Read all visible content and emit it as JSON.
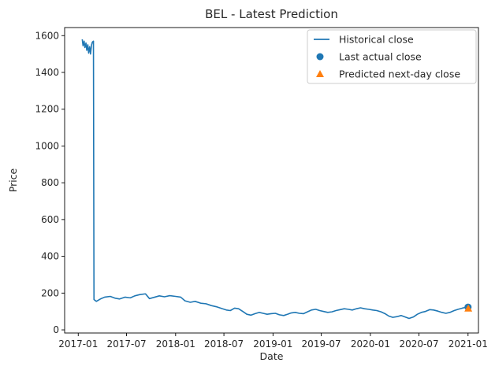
{
  "chart_data": {
    "type": "line",
    "title": "BEL - Latest Prediction",
    "xlabel": "Date",
    "ylabel": "Price",
    "xlim": [
      "2016-11-11",
      "2021-02-09"
    ],
    "ylim": [
      -17,
      1644
    ],
    "x_ticks": [
      "2017-01",
      "2017-07",
      "2018-01",
      "2018-07",
      "2019-01",
      "2019-07",
      "2020-01",
      "2020-07",
      "2021-01"
    ],
    "y_ticks": [
      0,
      200,
      400,
      600,
      800,
      1000,
      1200,
      1400,
      1600
    ],
    "grid": false,
    "legend_position": "top-right",
    "series": [
      {
        "name": "Historical close",
        "kind": "line",
        "color": "#1f77b4",
        "points": [
          [
            "2017-01-16",
            1580
          ],
          [
            "2017-01-19",
            1545
          ],
          [
            "2017-01-23",
            1570
          ],
          [
            "2017-01-26",
            1535
          ],
          [
            "2017-01-30",
            1560
          ],
          [
            "2017-02-02",
            1520
          ],
          [
            "2017-02-06",
            1550
          ],
          [
            "2017-02-09",
            1505
          ],
          [
            "2017-02-13",
            1540
          ],
          [
            "2017-02-16",
            1500
          ],
          [
            "2017-02-20",
            1550
          ],
          [
            "2017-02-23",
            1565
          ],
          [
            "2017-02-27",
            1570
          ],
          [
            "2017-03-01",
            165
          ],
          [
            "2017-03-10",
            155
          ],
          [
            "2017-03-25",
            168
          ],
          [
            "2017-04-10",
            178
          ],
          [
            "2017-05-01",
            182
          ],
          [
            "2017-05-20",
            172
          ],
          [
            "2017-06-05",
            168
          ],
          [
            "2017-06-25",
            178
          ],
          [
            "2017-07-15",
            174
          ],
          [
            "2017-08-01",
            185
          ],
          [
            "2017-08-20",
            192
          ],
          [
            "2017-09-10",
            196
          ],
          [
            "2017-09-25",
            170
          ],
          [
            "2017-10-15",
            178
          ],
          [
            "2017-11-01",
            185
          ],
          [
            "2017-11-20",
            180
          ],
          [
            "2017-12-10",
            186
          ],
          [
            "2018-01-01",
            182
          ],
          [
            "2018-01-20",
            178
          ],
          [
            "2018-02-05",
            158
          ],
          [
            "2018-02-25",
            150
          ],
          [
            "2018-03-15",
            155
          ],
          [
            "2018-04-05",
            145
          ],
          [
            "2018-04-25",
            142
          ],
          [
            "2018-05-15",
            132
          ],
          [
            "2018-06-05",
            125
          ],
          [
            "2018-06-25",
            115
          ],
          [
            "2018-07-10",
            108
          ],
          [
            "2018-07-25",
            105
          ],
          [
            "2018-08-10",
            118
          ],
          [
            "2018-08-25",
            115
          ],
          [
            "2018-09-10",
            100
          ],
          [
            "2018-09-25",
            85
          ],
          [
            "2018-10-10",
            80
          ],
          [
            "2018-10-25",
            88
          ],
          [
            "2018-11-10",
            95
          ],
          [
            "2018-11-25",
            90
          ],
          [
            "2018-12-10",
            85
          ],
          [
            "2018-12-25",
            88
          ],
          [
            "2019-01-10",
            90
          ],
          [
            "2019-01-25",
            82
          ],
          [
            "2019-02-10",
            78
          ],
          [
            "2019-02-25",
            85
          ],
          [
            "2019-03-10",
            92
          ],
          [
            "2019-03-25",
            95
          ],
          [
            "2019-04-10",
            90
          ],
          [
            "2019-04-25",
            88
          ],
          [
            "2019-05-10",
            98
          ],
          [
            "2019-05-25",
            108
          ],
          [
            "2019-06-10",
            112
          ],
          [
            "2019-06-25",
            105
          ],
          [
            "2019-07-10",
            100
          ],
          [
            "2019-07-25",
            95
          ],
          [
            "2019-08-10",
            98
          ],
          [
            "2019-08-25",
            105
          ],
          [
            "2019-09-10",
            110
          ],
          [
            "2019-09-25",
            115
          ],
          [
            "2019-10-10",
            112
          ],
          [
            "2019-10-25",
            108
          ],
          [
            "2019-11-10",
            115
          ],
          [
            "2019-11-25",
            120
          ],
          [
            "2019-12-10",
            115
          ],
          [
            "2019-12-25",
            112
          ],
          [
            "2020-01-10",
            108
          ],
          [
            "2020-01-25",
            105
          ],
          [
            "2020-02-10",
            98
          ],
          [
            "2020-02-25",
            88
          ],
          [
            "2020-03-10",
            75
          ],
          [
            "2020-03-25",
            68
          ],
          [
            "2020-04-10",
            72
          ],
          [
            "2020-04-25",
            78
          ],
          [
            "2020-05-10",
            70
          ],
          [
            "2020-05-25",
            62
          ],
          [
            "2020-06-10",
            70
          ],
          [
            "2020-06-25",
            85
          ],
          [
            "2020-07-10",
            95
          ],
          [
            "2020-07-25",
            100
          ],
          [
            "2020-08-10",
            110
          ],
          [
            "2020-08-25",
            108
          ],
          [
            "2020-09-10",
            102
          ],
          [
            "2020-09-25",
            95
          ],
          [
            "2020-10-10",
            90
          ],
          [
            "2020-10-25",
            95
          ],
          [
            "2020-11-10",
            105
          ],
          [
            "2020-11-25",
            112
          ],
          [
            "2020-12-10",
            118
          ],
          [
            "2020-12-22",
            122
          ],
          [
            "2021-01-01",
            124
          ]
        ]
      },
      {
        "name": "Last actual close",
        "kind": "scatter-circle",
        "color": "#1f77b4",
        "points": [
          [
            "2021-01-01",
            124
          ]
        ]
      },
      {
        "name": "Predicted next-day close",
        "kind": "scatter-triangle",
        "color": "#ff7f0e",
        "points": [
          [
            "2021-01-02",
            117
          ]
        ]
      }
    ]
  }
}
